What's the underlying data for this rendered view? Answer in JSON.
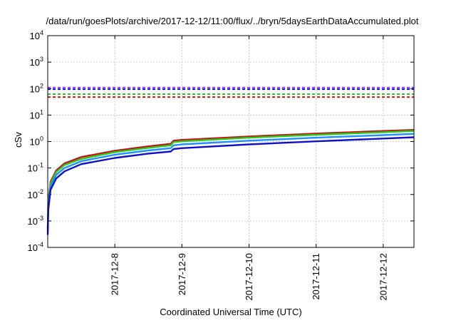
{
  "chart_data": {
    "type": "line",
    "title": "/data/run/goesPlots/archive/2017-12-12/11:00/flux/../bryn/5daysEarthDataAccumulated.plot",
    "xlabel": "Coordinated Universal Time (UTC)",
    "ylabel": "cSv",
    "yscale": "log",
    "ylim": [
      0.0001,
      10000
    ],
    "xlim": [
      "2017-12-07 00:00",
      "2017-12-12 11:00"
    ],
    "grid": true,
    "legend": "none",
    "y_ticks": [
      {
        "base": "10",
        "exp": "-4"
      },
      {
        "base": "10",
        "exp": "-3"
      },
      {
        "base": "10",
        "exp": "-2"
      },
      {
        "base": "10",
        "exp": "-1"
      },
      {
        "base": "10",
        "exp": "0"
      },
      {
        "base": "10",
        "exp": "1"
      },
      {
        "base": "10",
        "exp": "2"
      },
      {
        "base": "10",
        "exp": "3"
      },
      {
        "base": "10",
        "exp": "4"
      }
    ],
    "x_ticks": [
      "2017-12-8",
      "2017-12-9",
      "2017-12-10",
      "2017-12-11",
      "2017-12-12"
    ],
    "thresholds": [
      {
        "color": "#9b30ff",
        "value": 110
      },
      {
        "color": "#1010c8",
        "value": 95
      },
      {
        "color": "#22cc22",
        "value": 62
      },
      {
        "color": "#dd1111",
        "value": 48
      }
    ],
    "series": [
      {
        "color": "#cc1111",
        "x": [
          "2017-12-07 00:00",
          "2017-12-07 00:10",
          "2017-12-07 01:00",
          "2017-12-07 03:00",
          "2017-12-07 06:00",
          "2017-12-07 12:00",
          "2017-12-08 00:00",
          "2017-12-08 12:00",
          "2017-12-08 20:00",
          "2017-12-08 21:00",
          "2017-12-09 00:00",
          "2017-12-10 00:00",
          "2017-12-11 00:00",
          "2017-12-12 00:00",
          "2017-12-12 11:00"
        ],
        "y": [
          0.0005,
          0.005,
          0.03,
          0.08,
          0.15,
          0.26,
          0.45,
          0.66,
          0.82,
          1.08,
          1.15,
          1.55,
          2.0,
          2.5,
          2.75
        ]
      },
      {
        "color": "#22cc22",
        "x": [
          "2017-12-07 00:00",
          "2017-12-07 00:10",
          "2017-12-07 01:00",
          "2017-12-07 03:00",
          "2017-12-07 06:00",
          "2017-12-07 12:00",
          "2017-12-08 00:00",
          "2017-12-08 12:00",
          "2017-12-08 20:00",
          "2017-12-08 21:00",
          "2017-12-09 00:00",
          "2017-12-10 00:00",
          "2017-12-11 00:00",
          "2017-12-12 00:00",
          "2017-12-12 11:00"
        ],
        "y": [
          0.0005,
          0.004,
          0.026,
          0.07,
          0.13,
          0.22,
          0.4,
          0.58,
          0.72,
          0.95,
          1.02,
          1.4,
          1.8,
          2.25,
          2.5
        ]
      },
      {
        "color": "#1e90ff",
        "x": [
          "2017-12-07 00:00",
          "2017-12-07 00:10",
          "2017-12-07 01:00",
          "2017-12-07 03:00",
          "2017-12-07 06:00",
          "2017-12-07 12:00",
          "2017-12-08 00:00",
          "2017-12-08 12:00",
          "2017-12-08 20:00",
          "2017-12-08 21:00",
          "2017-12-09 00:00",
          "2017-12-10 00:00",
          "2017-12-11 00:00",
          "2017-12-12 00:00",
          "2017-12-12 11:00"
        ],
        "y": [
          0.0004,
          0.003,
          0.02,
          0.055,
          0.1,
          0.18,
          0.32,
          0.46,
          0.56,
          0.72,
          0.78,
          1.08,
          1.4,
          1.75,
          1.95
        ]
      },
      {
        "color": "#1010c8",
        "x": [
          "2017-12-07 00:00",
          "2017-12-07 00:10",
          "2017-12-07 01:00",
          "2017-12-07 03:00",
          "2017-12-07 06:00",
          "2017-12-07 12:00",
          "2017-12-08 00:00",
          "2017-12-08 12:00",
          "2017-12-08 20:00",
          "2017-12-08 21:00",
          "2017-12-09 00:00",
          "2017-12-10 00:00",
          "2017-12-11 00:00",
          "2017-12-12 00:00",
          "2017-12-12 11:00"
        ],
        "y": [
          0.0003,
          0.0025,
          0.015,
          0.04,
          0.075,
          0.14,
          0.24,
          0.35,
          0.42,
          0.52,
          0.56,
          0.78,
          1.02,
          1.3,
          1.45
        ]
      }
    ]
  }
}
